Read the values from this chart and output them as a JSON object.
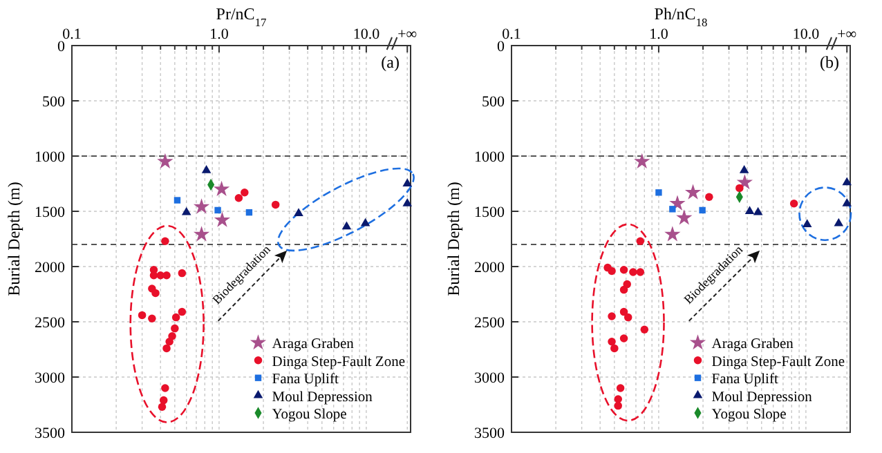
{
  "chart_data": [
    {
      "type": "scatter",
      "xlabel": "Pr/nC$_{17}$",
      "ylabel": "Burial Depth (m)",
      "log": "x",
      "grid": true,
      "legend": "bottom right",
      "xlim": [
        0.1,
        20
      ],
      "ylim": [
        3500,
        0
      ],
      "xticks": [
        {
          "value": 0.1,
          "label": "0.1"
        },
        {
          "value": 0.2,
          "label": null
        },
        {
          "value": 0.3,
          "label": null
        },
        {
          "value": 0.4,
          "label": null
        },
        {
          "value": 0.5,
          "label": null
        },
        {
          "value": 0.6,
          "label": null
        },
        {
          "value": 0.7,
          "label": null
        },
        {
          "value": 0.8,
          "label": null
        },
        {
          "value": 0.9,
          "label": null
        },
        {
          "value": 1,
          "label": "1.0"
        },
        {
          "value": 2,
          "label": null
        },
        {
          "value": 3,
          "label": null
        },
        {
          "value": 4,
          "label": null
        },
        {
          "value": 5,
          "label": null
        },
        {
          "value": 6,
          "label": null
        },
        {
          "value": 7,
          "label": null
        },
        {
          "value": 8,
          "label": null
        },
        {
          "value": 9,
          "label": null
        },
        {
          "value": 10,
          "label": "10.0"
        },
        {
          "value": 19,
          "label": "+∞"
        }
      ],
      "yticks": [
        0,
        500,
        1000,
        1500,
        2000,
        2500,
        3000,
        3500
      ],
      "ref_lines": [
        {
          "axis": "y",
          "value": 1000,
          "color": "#555555",
          "line_style": "dashed"
        },
        {
          "axis": "y",
          "value": 1800,
          "color": "#555555",
          "line_style": "dashed"
        }
      ],
      "annotations": [
        "(a)",
        "Biodegradation"
      ],
      "series": [
        {
          "name": "Araga Graben",
          "color": "#a8508c",
          "marker": "star",
          "x": [
            0.43,
            0.76,
            1.04,
            1.05,
            0.76
          ],
          "values": [
            1050,
            1460,
            1300,
            1580,
            1710
          ]
        },
        {
          "name": "Dinga Step-Fault Zone",
          "color": "#e8102a",
          "marker": "circle",
          "x": [
            1.36,
            1.49,
            2.42,
            0.43,
            0.36,
            0.36,
            0.4,
            0.44,
            0.56,
            0.35,
            0.37,
            0.3,
            0.35,
            0.51,
            0.56,
            0.5,
            0.48,
            0.46,
            0.44,
            0.43,
            0.42,
            0.41
          ],
          "values": [
            1380,
            1330,
            1440,
            1770,
            2030,
            2080,
            2080,
            2080,
            2060,
            2200,
            2240,
            2440,
            2470,
            2460,
            2410,
            2560,
            2630,
            2680,
            2740,
            3100,
            3210,
            3270
          ]
        },
        {
          "name": "Fana Uplift",
          "color": "#1e6fe0",
          "marker": "square",
          "x": [
            0.52,
            0.98,
            1.6
          ],
          "values": [
            1400,
            1490,
            1510
          ]
        },
        {
          "name": "Moul Depression",
          "color": "#0a1a6e",
          "marker": "triangle",
          "x": [
            0.82,
            0.6,
            3.47,
            7.35,
            9.86,
            19,
            19
          ],
          "values": [
            1130,
            1510,
            1520,
            1640,
            1610,
            1250,
            1430
          ]
        },
        {
          "name": "Yogou Slope",
          "color": "#1a8a2a",
          "marker": "diamond",
          "x": [
            0.88
          ],
          "values": [
            1260
          ]
        }
      ]
    },
    {
      "type": "scatter",
      "xlabel": "Ph/nC$_{18}$",
      "ylabel": "Burial Depth (m)",
      "log": "x",
      "grid": true,
      "legend": "bottom right",
      "xlim": [
        0.1,
        20
      ],
      "ylim": [
        3500,
        0
      ],
      "xticks": [
        {
          "value": 0.1,
          "label": "0.1"
        },
        {
          "value": 0.2,
          "label": null
        },
        {
          "value": 0.3,
          "label": null
        },
        {
          "value": 0.4,
          "label": null
        },
        {
          "value": 0.5,
          "label": null
        },
        {
          "value": 0.6,
          "label": null
        },
        {
          "value": 0.7,
          "label": null
        },
        {
          "value": 0.8,
          "label": null
        },
        {
          "value": 0.9,
          "label": null
        },
        {
          "value": 1,
          "label": "1.0"
        },
        {
          "value": 2,
          "label": null
        },
        {
          "value": 3,
          "label": null
        },
        {
          "value": 4,
          "label": null
        },
        {
          "value": 5,
          "label": null
        },
        {
          "value": 6,
          "label": null
        },
        {
          "value": 7,
          "label": null
        },
        {
          "value": 8,
          "label": null
        },
        {
          "value": 9,
          "label": null
        },
        {
          "value": 10,
          "label": "10.0"
        },
        {
          "value": 19,
          "label": "+∞"
        }
      ],
      "yticks": [
        0,
        500,
        1000,
        1500,
        2000,
        2500,
        3000,
        3500
      ],
      "ref_lines": [
        {
          "axis": "y",
          "value": 1000,
          "color": "#555555",
          "line_style": "dashed"
        },
        {
          "axis": "y",
          "value": 1800,
          "color": "#555555",
          "line_style": "dashed"
        }
      ],
      "annotations": [
        "(b)",
        "Biodegradation"
      ],
      "series": [
        {
          "name": "Araga Graben",
          "color": "#a8508c",
          "marker": "star",
          "x": [
            0.77,
            1.71,
            1.34,
            1.49,
            3.84,
            1.24
          ],
          "values": [
            1050,
            1330,
            1430,
            1560,
            1240,
            1710
          ]
        },
        {
          "name": "Dinga Step-Fault Zone",
          "color": "#e8102a",
          "marker": "circle",
          "x": [
            2.2,
            3.54,
            8.3,
            0.75,
            0.45,
            0.48,
            0.58,
            0.67,
            0.75,
            0.61,
            0.58,
            0.48,
            0.58,
            0.62,
            0.8,
            0.48,
            0.5,
            0.58,
            0.55,
            0.53,
            0.53
          ],
          "values": [
            1370,
            1290,
            1430,
            1770,
            2010,
            2040,
            2030,
            2050,
            2050,
            2160,
            2210,
            2450,
            2410,
            2460,
            2570,
            2680,
            2740,
            2650,
            3100,
            3200,
            3260
          ]
        },
        {
          "name": "Fana Uplift",
          "color": "#1e6fe0",
          "marker": "square",
          "x": [
            1.0,
            1.24,
            1.98
          ],
          "values": [
            1330,
            1480,
            1490
          ]
        },
        {
          "name": "Moul Depression",
          "color": "#0a1a6e",
          "marker": "triangle",
          "x": [
            3.81,
            4.15,
            4.73,
            10.2,
            16.7,
            19,
            19
          ],
          "values": [
            1130,
            1500,
            1510,
            1620,
            1610,
            1240,
            1430
          ]
        },
        {
          "name": "Yogou Slope",
          "color": "#1a8a2a",
          "marker": "diamond",
          "x": [
            3.54
          ],
          "values": [
            1370
          ]
        }
      ]
    }
  ]
}
